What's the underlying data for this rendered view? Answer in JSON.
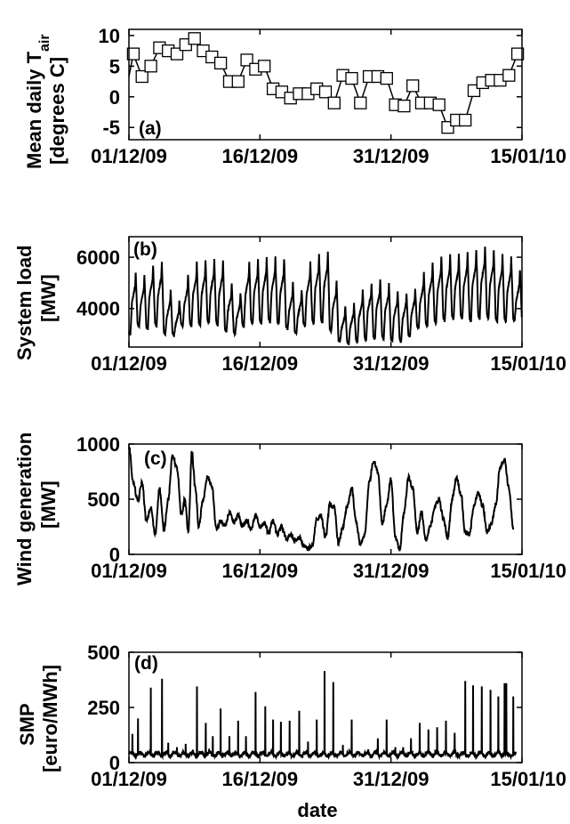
{
  "figure": {
    "xlabel": "date",
    "x_ticks": [
      "01/12/09",
      "16/12/09",
      "31/12/09",
      "15/01/10"
    ]
  },
  "chart_data": [
    {
      "type": "line",
      "panel_label": "(a)",
      "ylabel_lines": [
        "Mean daily T",
        "[degrees C]"
      ],
      "ylabel_subscript": "air",
      "x": [
        "01/12/09",
        "02/12/09",
        "03/12/09",
        "04/12/09",
        "05/12/09",
        "06/12/09",
        "07/12/09",
        "08/12/09",
        "09/12/09",
        "10/12/09",
        "11/12/09",
        "12/12/09",
        "13/12/09",
        "14/12/09",
        "15/12/09",
        "16/12/09",
        "17/12/09",
        "18/12/09",
        "19/12/09",
        "20/12/09",
        "21/12/09",
        "22/12/09",
        "23/12/09",
        "24/12/09",
        "25/12/09",
        "26/12/09",
        "27/12/09",
        "28/12/09",
        "29/12/09",
        "30/12/09",
        "31/12/09",
        "01/01/10",
        "02/01/10",
        "03/01/10",
        "04/01/10",
        "05/01/10",
        "06/01/10",
        "07/01/10",
        "08/01/10",
        "09/01/10",
        "10/01/10",
        "11/01/10",
        "12/01/10",
        "13/01/10",
        "14/01/10"
      ],
      "values": [
        7,
        3.3,
        5,
        8,
        7.5,
        7,
        8.5,
        9.5,
        7.5,
        6.5,
        5.5,
        2.5,
        2.5,
        6,
        4.5,
        5,
        1.3,
        0.8,
        -0.2,
        0.5,
        0.5,
        1.3,
        0.8,
        -1,
        3.5,
        3,
        -1,
        3.3,
        3.3,
        3,
        -1.3,
        -1.5,
        1.8,
        -1,
        -1,
        -1.3,
        -5,
        -3.8,
        -3.8,
        1,
        2.3,
        2.7,
        2.7,
        3.5,
        7
      ],
      "marker": "square",
      "ylim": [
        -7,
        11
      ],
      "yticks": [
        -5,
        0,
        5,
        10
      ]
    },
    {
      "type": "line",
      "panel_label": "(b)",
      "ylabel_lines": [
        "System load",
        "[MW]"
      ],
      "x_range": [
        "01/12/09",
        "14/01/10"
      ],
      "samples_per_day": 48,
      "daily_peak": [
        5400,
        5300,
        5700,
        5800,
        4700,
        4300,
        5300,
        5800,
        5850,
        5900,
        5850,
        5000,
        4600,
        5800,
        5900,
        6000,
        6000,
        5900,
        5000,
        4750,
        5800,
        6100,
        6200,
        5100,
        4100,
        4200,
        4700,
        5000,
        5100,
        5000,
        4700,
        4600,
        4800,
        5400,
        5800,
        6000,
        6100,
        6100,
        6200,
        6300,
        6400,
        6300,
        6100,
        6000,
        5500
      ],
      "daily_trough": [
        2950,
        3300,
        3200,
        3300,
        3000,
        2950,
        3300,
        3300,
        3350,
        3400,
        3350,
        3100,
        3000,
        3300,
        3400,
        3400,
        3450,
        3400,
        3200,
        3000,
        3300,
        3400,
        3450,
        3100,
        2700,
        2600,
        2700,
        2750,
        2800,
        2800,
        2700,
        2700,
        2900,
        3200,
        3300,
        3400,
        3500,
        3600,
        3600,
        3500,
        3600,
        3600,
        3500,
        3500,
        3500
      ],
      "ylim": [
        2500,
        6800
      ],
      "yticks": [
        4000,
        6000
      ]
    },
    {
      "type": "line",
      "panel_label": "(c)",
      "ylabel_lines": [
        "Wind generation",
        "[MW]"
      ],
      "x_range": [
        "01/12/09",
        "14/01/10"
      ],
      "samples_per_day": 24,
      "knots": [
        [
          0,
          980
        ],
        [
          0.5,
          650
        ],
        [
          1,
          480
        ],
        [
          1.5,
          650
        ],
        [
          2,
          300
        ],
        [
          2.5,
          420
        ],
        [
          3,
          180
        ],
        [
          3.5,
          600
        ],
        [
          4,
          220
        ],
        [
          4.5,
          500
        ],
        [
          5,
          900
        ],
        [
          5.5,
          780
        ],
        [
          6,
          350
        ],
        [
          6.4,
          500
        ],
        [
          6.8,
          200
        ],
        [
          7.2,
          930
        ],
        [
          7.6,
          600
        ],
        [
          8,
          250
        ],
        [
          8.5,
          500
        ],
        [
          9,
          700
        ],
        [
          9.5,
          620
        ],
        [
          10,
          230
        ],
        [
          10.5,
          300
        ],
        [
          11,
          250
        ],
        [
          11.5,
          380
        ],
        [
          12,
          280
        ],
        [
          12.5,
          350
        ],
        [
          13,
          260
        ],
        [
          13.5,
          300
        ],
        [
          14,
          240
        ],
        [
          14.5,
          350
        ],
        [
          15,
          250
        ],
        [
          15.5,
          280
        ],
        [
          16,
          200
        ],
        [
          16.5,
          300
        ],
        [
          17,
          180
        ],
        [
          17.5,
          250
        ],
        [
          18,
          140
        ],
        [
          18.5,
          180
        ],
        [
          19,
          120
        ],
        [
          19.5,
          150
        ],
        [
          20,
          80
        ],
        [
          20.5,
          50
        ],
        [
          21,
          80
        ],
        [
          21.5,
          320
        ],
        [
          22,
          350
        ],
        [
          22.5,
          150
        ],
        [
          23,
          450
        ],
        [
          23.5,
          420
        ],
        [
          24,
          100
        ],
        [
          24.5,
          250
        ],
        [
          25,
          430
        ],
        [
          25.5,
          600
        ],
        [
          26,
          300
        ],
        [
          26.5,
          80
        ],
        [
          27,
          180
        ],
        [
          27.5,
          650
        ],
        [
          28,
          850
        ],
        [
          28.5,
          750
        ],
        [
          29,
          280
        ],
        [
          29.5,
          450
        ],
        [
          30,
          680
        ],
        [
          30.5,
          150
        ],
        [
          31,
          40
        ],
        [
          31.5,
          380
        ],
        [
          32,
          700
        ],
        [
          32.5,
          600
        ],
        [
          33,
          200
        ],
        [
          33.5,
          380
        ],
        [
          34,
          120
        ],
        [
          34.5,
          250
        ],
        [
          35,
          430
        ],
        [
          35.5,
          500
        ],
        [
          36,
          320
        ],
        [
          36.5,
          150
        ],
        [
          37,
          500
        ],
        [
          37.5,
          700
        ],
        [
          38,
          550
        ],
        [
          38.5,
          200
        ],
        [
          39,
          180
        ],
        [
          39.5,
          450
        ],
        [
          40,
          550
        ],
        [
          40.5,
          440
        ],
        [
          41,
          200
        ],
        [
          41.5,
          280
        ],
        [
          42,
          450
        ],
        [
          42.5,
          800
        ],
        [
          43,
          860
        ],
        [
          43.5,
          600
        ],
        [
          44,
          230
        ]
      ],
      "ylim": [
        0,
        1000
      ],
      "yticks": [
        0,
        500,
        1000
      ]
    },
    {
      "type": "line",
      "panel_label": "(d)",
      "ylabel_lines": [
        "SMP",
        "[euro/MWh]"
      ],
      "x_range": [
        "01/12/09",
        "14/01/10"
      ],
      "samples_per_day": 48,
      "baseline": 38,
      "spikes": [
        [
          0.4,
          130
        ],
        [
          1.05,
          200
        ],
        [
          2.5,
          340
        ],
        [
          3.8,
          380
        ],
        [
          4.5,
          90
        ],
        [
          5.5,
          70
        ],
        [
          6.5,
          85
        ],
        [
          7.8,
          345
        ],
        [
          8.8,
          180
        ],
        [
          9.6,
          120
        ],
        [
          10.5,
          245
        ],
        [
          11.5,
          120
        ],
        [
          12.5,
          190
        ],
        [
          13.4,
          120
        ],
        [
          14.5,
          320
        ],
        [
          15.6,
          255
        ],
        [
          16.5,
          195
        ],
        [
          17.4,
          185
        ],
        [
          18.4,
          190
        ],
        [
          19.5,
          235
        ],
        [
          20.5,
          95
        ],
        [
          21.5,
          195
        ],
        [
          22.4,
          415
        ],
        [
          23.4,
          365
        ],
        [
          24.5,
          80
        ],
        [
          25.5,
          195
        ],
        [
          26.5,
          35
        ],
        [
          27.4,
          60
        ],
        [
          28.5,
          110
        ],
        [
          29.5,
          195
        ],
        [
          30.5,
          70
        ],
        [
          31.4,
          70
        ],
        [
          32.3,
          110
        ],
        [
          33.3,
          180
        ],
        [
          34.3,
          150
        ],
        [
          35.3,
          160
        ],
        [
          36.3,
          190
        ],
        [
          37.3,
          135
        ],
        [
          38.5,
          370
        ],
        [
          39.4,
          350
        ],
        [
          40.4,
          345
        ],
        [
          41.4,
          330
        ],
        [
          42.3,
          300
        ],
        [
          43.0,
          360
        ],
        [
          43.2,
          360
        ],
        [
          44.0,
          300
        ],
        [
          45.0,
          240
        ],
        [
          46.3,
          165
        ]
      ],
      "ylim": [
        0,
        500
      ],
      "yticks": [
        0,
        250,
        500
      ]
    }
  ]
}
